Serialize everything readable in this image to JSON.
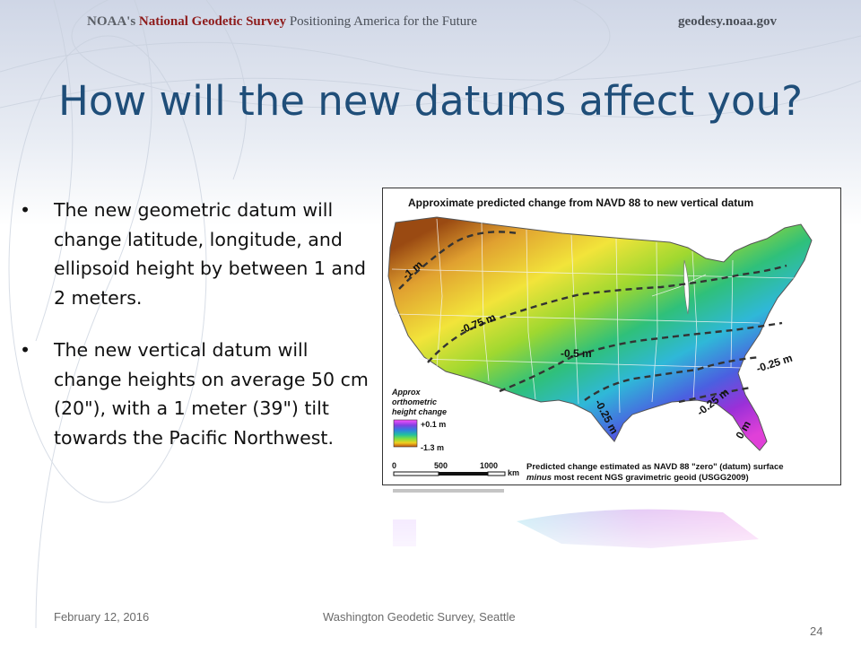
{
  "header": {
    "org_prefix": "NOAA's ",
    "org_name": "National Geodetic Survey",
    "tagline": " Positioning America for the Future",
    "website": "geodesy.noaa.gov"
  },
  "slide": {
    "title": "How will the new datums affect you?",
    "bullets": [
      "The new geometric datum will change latitude, longitude, and ellipsoid height by between 1 and 2 meters.",
      "The new vertical datum will change heights on average 50 cm (20\"), with a 1 meter (39\") tilt towards the Pacific Northwest."
    ]
  },
  "map": {
    "title": "Approximate predicted change from NAVD 88 to new vertical datum",
    "contour_labels": [
      "-1 m",
      "-0.75 m",
      "-0.5 m",
      "-0.25 m",
      "-0.25 m",
      "-0.25 m",
      "0 m"
    ],
    "legend": {
      "title_line1": "Approx",
      "title_line2": "orthometric",
      "title_line3": "height change",
      "max": "+0.1 m",
      "min": "-1.3 m"
    },
    "scale": {
      "ticks": [
        "0",
        "500",
        "1000"
      ],
      "unit": "km"
    },
    "note_line1": "Predicted change estimated as NAVD 88 \"zero\" (datum) surface",
    "note_line2_em": "minus",
    "note_line2_rest": " most recent NGS gravimetric geoid (USGG2009)"
  },
  "footer": {
    "date": "February 12, 2016",
    "event": "Washington Geodetic Survey, Seattle",
    "page": "24"
  }
}
